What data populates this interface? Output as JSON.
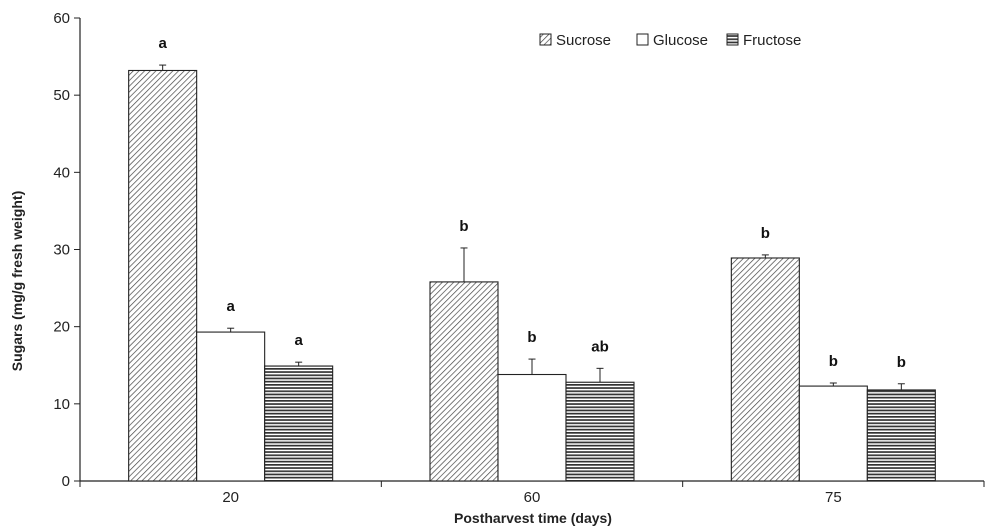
{
  "chart_data": {
    "type": "bar",
    "xlabel": "Postharvest time (days)",
    "ylabel": "Sugars (mg/g fresh weight)",
    "ylim": [
      0,
      60
    ],
    "yticks": [
      0,
      10,
      20,
      30,
      40,
      50,
      60
    ],
    "categories": [
      "20",
      "60",
      "75"
    ],
    "legend_position": "top-right",
    "grid": false,
    "series": [
      {
        "name": "Sucrose",
        "pattern": "diagonal-hatch",
        "values": [
          53.2,
          25.8,
          28.9
        ],
        "errors": [
          0.7,
          4.4,
          0.4
        ],
        "labels": [
          "a",
          "b",
          "b"
        ]
      },
      {
        "name": "Glucose",
        "pattern": "white",
        "values": [
          19.3,
          13.8,
          12.3
        ],
        "errors": [
          0.5,
          2.0,
          0.4
        ],
        "labels": [
          "a",
          "b",
          "b"
        ]
      },
      {
        "name": "Fructose",
        "pattern": "horizontal-stripes",
        "values": [
          14.9,
          12.8,
          11.8
        ],
        "errors": [
          0.5,
          1.8,
          0.8
        ],
        "labels": [
          "a",
          "ab",
          "b"
        ]
      }
    ]
  },
  "colors": {
    "axis": "#222222",
    "bar_outline": "#222222",
    "hatch": "#333333"
  }
}
